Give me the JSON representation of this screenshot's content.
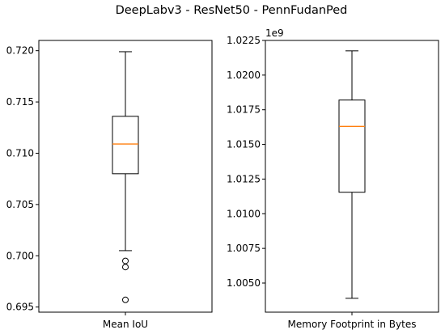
{
  "figure": {
    "title": "DeepLabv3 - ResNet50 - PennFudanPed"
  },
  "chart_data": [
    {
      "type": "box",
      "title": "",
      "xlabel": "Mean IoU",
      "ylabel": "",
      "ylim": [
        0.6945,
        0.721
      ],
      "yticks": [
        "0.695",
        "0.700",
        "0.705",
        "0.710",
        "0.715",
        "0.720"
      ],
      "ytick_values": [
        0.695,
        0.7,
        0.705,
        0.71,
        0.715,
        0.72
      ],
      "offset_text": "",
      "box": {
        "whislo": 0.7005,
        "q1": 0.708,
        "med": 0.7109,
        "q3": 0.7136,
        "whishi": 0.7199
      },
      "fliers": [
        0.6995,
        0.6989,
        0.6957
      ],
      "colors": {
        "box": "#000000",
        "median": "#ff7f0e"
      }
    },
    {
      "type": "box",
      "title": "",
      "xlabel": "Memory Footprint in Bytes",
      "ylabel": "",
      "ylim": [
        1.0029,
        1.0225
      ],
      "yticks": [
        "1.0050",
        "1.0075",
        "1.0100",
        "1.0125",
        "1.0150",
        "1.0175",
        "1.0200",
        "1.0225"
      ],
      "ytick_values": [
        1.005,
        1.0075,
        1.01,
        1.0125,
        1.015,
        1.0175,
        1.02,
        1.0225
      ],
      "offset_text": "1e9",
      "box": {
        "whislo": 1.0039,
        "q1": 1.01155,
        "med": 1.0163,
        "q3": 1.0182,
        "whishi": 1.02175
      },
      "fliers": [],
      "colors": {
        "box": "#000000",
        "median": "#ff7f0e"
      }
    }
  ]
}
